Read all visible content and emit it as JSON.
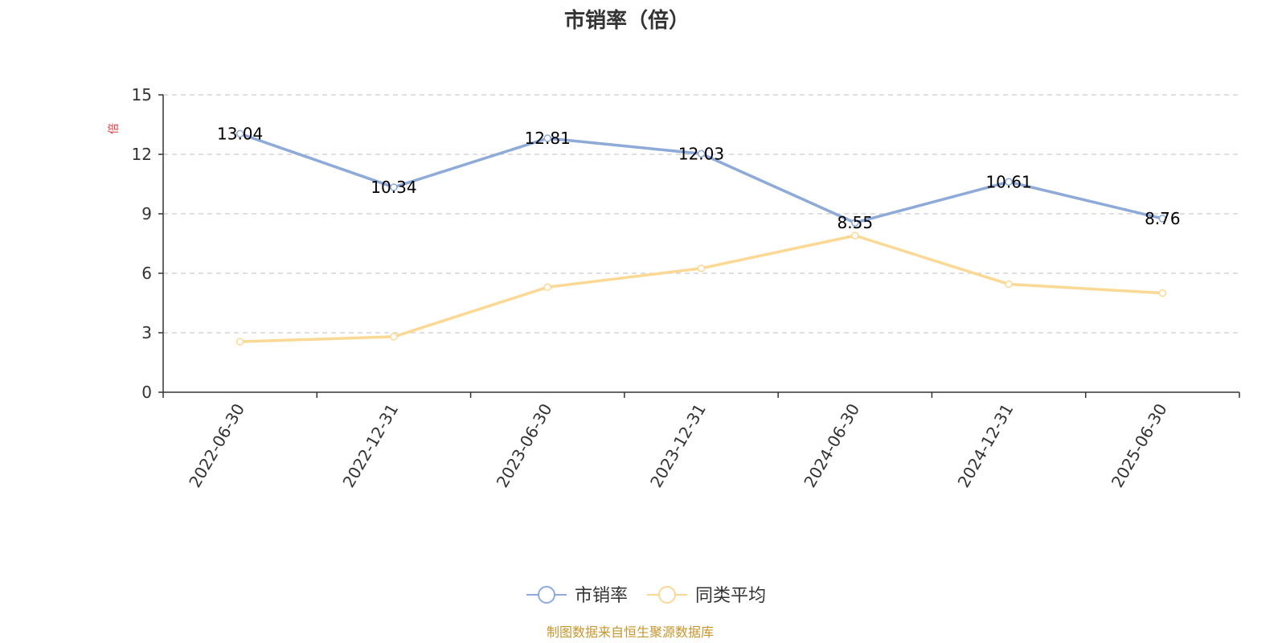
{
  "chart_data": {
    "type": "line",
    "title": "市销率（倍）",
    "ylabel": "倍",
    "xlabel": "",
    "categories": [
      "2022-06-30",
      "2022-12-31",
      "2023-06-30",
      "2023-12-31",
      "2024-06-30",
      "2024-12-31",
      "2025-06-30"
    ],
    "ylim": [
      0,
      15
    ],
    "yticks": [
      0,
      3,
      6,
      9,
      12,
      15
    ],
    "grid": true,
    "legend_position": "bottom",
    "series": [
      {
        "name": "市销率",
        "color": "#8eaad8",
        "values": [
          13.04,
          10.34,
          12.81,
          12.03,
          8.55,
          10.61,
          8.76
        ],
        "show_labels": true
      },
      {
        "name": "同类平均",
        "color": "#fbd994",
        "values": [
          2.55,
          2.8,
          5.3,
          6.25,
          7.9,
          5.45,
          5.0
        ],
        "show_labels": false
      }
    ]
  },
  "source_text": "制图数据来自恒生聚源数据库",
  "colors": {
    "ylabel": "#e0393e",
    "source": "#c8962e",
    "axis": "#333333",
    "grid": "#cccccc"
  }
}
